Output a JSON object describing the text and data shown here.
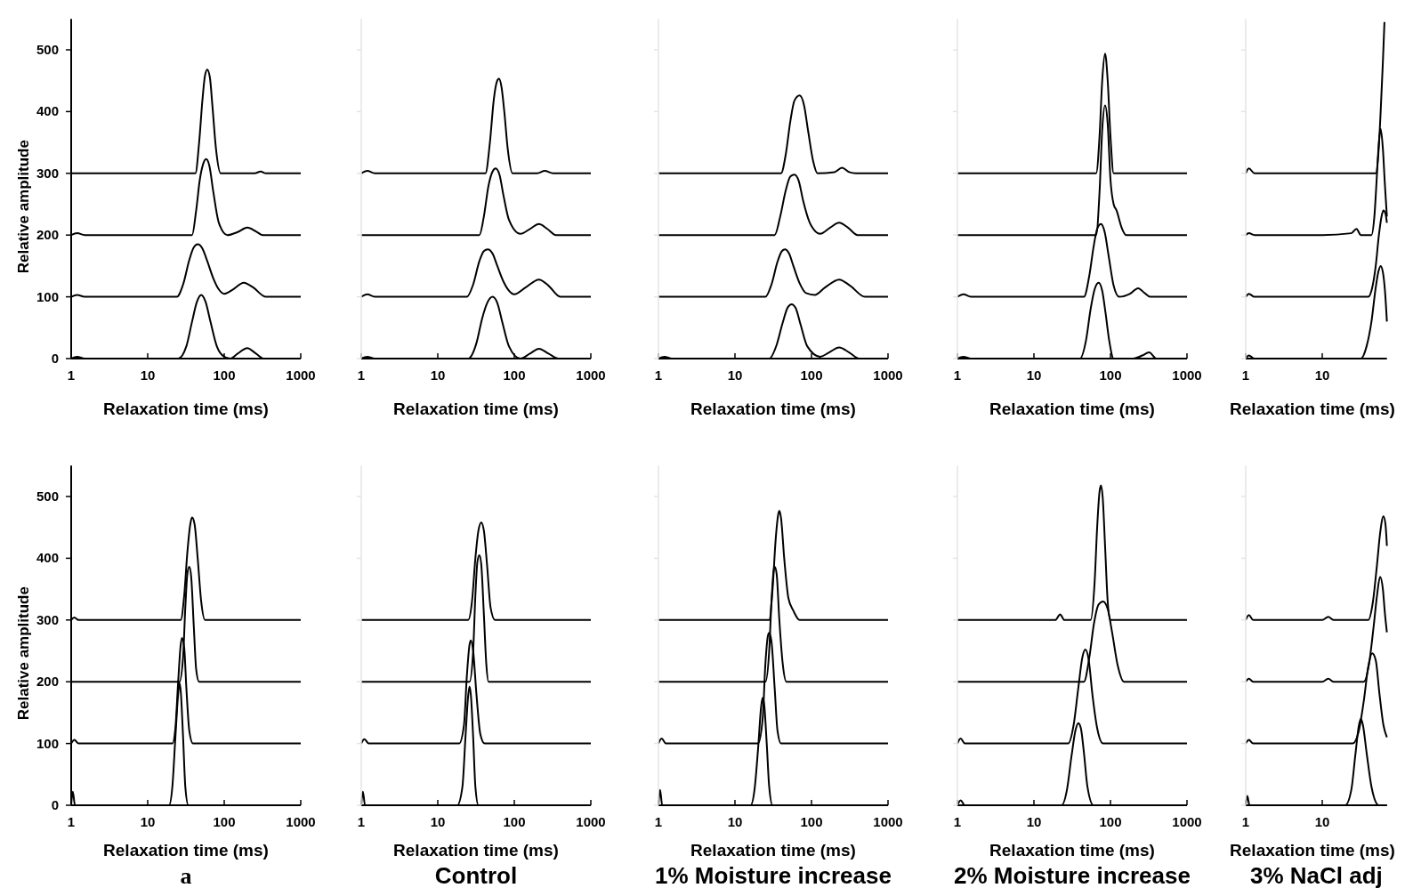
{
  "chart_data": [
    {
      "type": "line",
      "log": "x",
      "xlim": [
        1,
        1000
      ],
      "xticks": [
        1,
        10,
        100,
        1000
      ],
      "ylim": [
        0,
        550
      ],
      "yticks": [
        0,
        100,
        200,
        300,
        400,
        500
      ],
      "xlabel": "Relaxation time (ms)",
      "ylabel": "Relative amplitude",
      "series": [
        {
          "color": "#000000",
          "x": [
            1,
            1.2,
            1.5,
            10,
            25,
            32,
            38,
            44,
            50,
            57,
            66,
            80,
            100,
            120,
            150,
            200,
            260,
            330,
            1000
          ],
          "values": [
            0,
            3,
            0,
            0,
            0,
            20,
            60,
            92,
            103,
            92,
            60,
            20,
            3,
            0,
            8,
            17,
            8,
            0,
            0
          ]
        },
        {
          "color": "#000000",
          "x": [
            1,
            1.2,
            1.5,
            10,
            24,
            29,
            35,
            40,
            45,
            52,
            60,
            72,
            85,
            100,
            130,
            180,
            240,
            350,
            1000
          ],
          "values": [
            100,
            103,
            100,
            100,
            100,
            120,
            160,
            180,
            185,
            178,
            158,
            130,
            112,
            105,
            112,
            123,
            115,
            100,
            100
          ]
        },
        {
          "color": "#000000",
          "x": [
            1,
            1.2,
            1.5,
            10,
            38,
            43,
            48,
            53,
            58,
            64,
            72,
            85,
            110,
            150,
            200,
            260,
            320,
            1000
          ],
          "values": [
            200,
            203,
            200,
            200,
            200,
            240,
            290,
            315,
            323,
            312,
            270,
            220,
            200,
            205,
            212,
            206,
            200,
            200
          ]
        },
        {
          "color": "#000000",
          "x": [
            1,
            10,
            42,
            47,
            52,
            56,
            60,
            65,
            70,
            78,
            90,
            250,
            300,
            350,
            1000
          ],
          "values": [
            300,
            300,
            300,
            350,
            420,
            458,
            468,
            455,
            410,
            340,
            300,
            300,
            303,
            300,
            300
          ]
        }
      ]
    },
    {
      "type": "line",
      "log": "x",
      "xlim": [
        1,
        1000
      ],
      "xticks": [
        1,
        10,
        100,
        1000
      ],
      "ylim": [
        0,
        550
      ],
      "yticks": [
        0,
        100,
        200,
        300,
        400,
        500
      ],
      "xlabel": "Relaxation time (ms)",
      "tick_labels": "x",
      "series": [
        {
          "color": "#000000",
          "x": [
            1,
            1.2,
            1.5,
            10,
            25,
            32,
            38,
            45,
            52,
            60,
            70,
            85,
            120,
            160,
            210,
            280,
            380,
            1000
          ],
          "values": [
            0,
            3,
            0,
            0,
            0,
            25,
            65,
            92,
            100,
            90,
            58,
            20,
            0,
            8,
            16,
            8,
            0,
            0
          ]
        },
        {
          "color": "#000000",
          "x": [
            1,
            1.2,
            1.5,
            10,
            24,
            29,
            35,
            40,
            45,
            52,
            60,
            72,
            85,
            100,
            140,
            210,
            280,
            400,
            1000
          ],
          "values": [
            100,
            104,
            100,
            100,
            100,
            120,
            158,
            174,
            177,
            170,
            150,
            125,
            110,
            104,
            115,
            128,
            118,
            100,
            100
          ]
        },
        {
          "color": "#000000",
          "x": [
            1,
            10,
            35,
            40,
            46,
            52,
            57,
            64,
            72,
            85,
            120,
            160,
            210,
            270,
            350,
            1000
          ],
          "values": [
            200,
            200,
            200,
            230,
            280,
            303,
            308,
            298,
            265,
            225,
            202,
            210,
            218,
            210,
            200,
            200
          ]
        },
        {
          "color": "#000000",
          "x": [
            1,
            1.2,
            1.5,
            10,
            42,
            48,
            54,
            59,
            63,
            68,
            74,
            82,
            95,
            200,
            250,
            320,
            1000
          ],
          "values": [
            300,
            304,
            300,
            300,
            300,
            350,
            420,
            448,
            453,
            440,
            400,
            340,
            300,
            300,
            304,
            300,
            300
          ]
        }
      ]
    },
    {
      "type": "line",
      "log": "x",
      "xlim": [
        1,
        1000
      ],
      "xticks": [
        1,
        10,
        100,
        1000
      ],
      "ylim": [
        0,
        550
      ],
      "yticks": [
        0,
        100,
        200,
        300,
        400,
        500
      ],
      "xlabel": "Relaxation time (ms)",
      "tick_labels": "x",
      "series": [
        {
          "color": "#000000",
          "x": [
            1,
            1.2,
            1.5,
            10,
            28,
            35,
            42,
            49,
            55,
            62,
            72,
            88,
            130,
            170,
            230,
            310,
            420,
            1000
          ],
          "values": [
            0,
            3,
            0,
            0,
            0,
            22,
            58,
            83,
            88,
            82,
            55,
            20,
            3,
            10,
            18,
            10,
            0,
            0
          ]
        },
        {
          "color": "#000000",
          "x": [
            1,
            10,
            25,
            30,
            36,
            41,
            45,
            51,
            58,
            70,
            85,
            110,
            150,
            230,
            320,
            500,
            1000
          ],
          "values": [
            100,
            100,
            100,
            120,
            157,
            174,
            177,
            170,
            150,
            122,
            106,
            103,
            115,
            128,
            118,
            100,
            100
          ]
        },
        {
          "color": "#000000",
          "x": [
            1,
            10,
            33,
            39,
            46,
            53,
            60,
            68,
            78,
            95,
            130,
            175,
            230,
            300,
            400,
            1000
          ],
          "values": [
            200,
            200,
            200,
            230,
            272,
            295,
            298,
            288,
            255,
            220,
            202,
            212,
            220,
            212,
            200,
            200
          ]
        },
        {
          "color": "#000000",
          "x": [
            1,
            10,
            40,
            46,
            53,
            60,
            70,
            80,
            90,
            105,
            120,
            200,
            250,
            310,
            380,
            1000
          ],
          "values": [
            300,
            300,
            300,
            330,
            385,
            418,
            426,
            410,
            370,
            320,
            300,
            302,
            309,
            302,
            300,
            300
          ]
        }
      ]
    },
    {
      "type": "line",
      "log": "x",
      "xlim": [
        1,
        1000
      ],
      "xticks": [
        1,
        10,
        100,
        1000
      ],
      "ylim": [
        0,
        550
      ],
      "yticks": [
        0,
        100,
        200,
        300,
        400,
        500
      ],
      "xlabel": "Relaxation time (ms)",
      "tick_labels": "x",
      "series": [
        {
          "color": "#000000",
          "x": [
            1,
            1.2,
            1.5,
            10,
            40,
            48,
            55,
            62,
            70,
            78,
            86,
            96,
            110,
            200,
            260,
            320,
            400,
            1000
          ],
          "values": [
            0,
            3,
            0,
            0,
            0,
            30,
            80,
            112,
            123,
            110,
            75,
            30,
            0,
            0,
            5,
            10,
            0,
            0
          ]
        },
        {
          "color": "#000000",
          "x": [
            1,
            1.2,
            1.5,
            10,
            45,
            53,
            60,
            67,
            75,
            84,
            95,
            110,
            130,
            180,
            230,
            280,
            330,
            1000
          ],
          "values": [
            100,
            104,
            100,
            100,
            100,
            135,
            180,
            210,
            218,
            205,
            165,
            118,
            100,
            105,
            114,
            106,
            100,
            100
          ]
        },
        {
          "color": "#000000",
          "x": [
            1,
            10,
            65,
            72,
            78,
            85,
            92,
            100,
            110,
            120,
            140,
            160,
            1000
          ],
          "values": [
            200,
            200,
            200,
            270,
            370,
            410,
            380,
            290,
            250,
            240,
            212,
            200,
            200
          ]
        },
        {
          "color": "#000000",
          "x": [
            1,
            10,
            65,
            72,
            78,
            85,
            92,
            100,
            110,
            1000
          ],
          "values": [
            300,
            300,
            300,
            360,
            450,
            494,
            450,
            360,
            300,
            300
          ]
        }
      ]
    },
    {
      "type": "line",
      "log": "x",
      "xlim": [
        1,
        70
      ],
      "xticks": [
        1,
        10
      ],
      "ylim": [
        0,
        550
      ],
      "yticks": [
        0,
        100,
        200,
        300,
        400,
        500
      ],
      "xlabel": "Relaxation time (ms)",
      "tick_labels": "x",
      "series": [
        {
          "color": "#000000",
          "x": [
            1,
            1.1,
            1.3,
            10,
            32,
            38,
            44,
            50,
            54,
            58,
            62,
            66,
            70
          ],
          "values": [
            0,
            5,
            0,
            0,
            0,
            20,
            60,
            115,
            140,
            150,
            140,
            110,
            60
          ]
        },
        {
          "color": "#000000",
          "x": [
            1,
            1.1,
            1.3,
            10,
            40,
            45,
            50,
            55,
            60,
            63,
            67,
            70
          ],
          "values": [
            100,
            105,
            100,
            100,
            100,
            115,
            150,
            200,
            232,
            240,
            235,
            220
          ]
        },
        {
          "color": "#000000",
          "x": [
            1,
            1.1,
            1.3,
            10,
            24,
            28,
            32,
            44,
            48,
            52,
            55,
            58,
            62,
            66,
            70
          ],
          "values": [
            200,
            203,
            200,
            200,
            203,
            210,
            200,
            200,
            230,
            300,
            350,
            372,
            340,
            280,
            230
          ]
        },
        {
          "color": "#000000",
          "x": [
            1,
            1.1,
            1.3,
            10,
            50,
            54,
            58,
            62,
            65
          ],
          "values": [
            300,
            308,
            300,
            300,
            300,
            330,
            400,
            480,
            545
          ]
        }
      ]
    },
    {
      "type": "line",
      "log": "x",
      "xlim": [
        1,
        1000
      ],
      "xticks": [
        1,
        10,
        100,
        1000
      ],
      "ylim": [
        0,
        550
      ],
      "yticks": [
        0,
        100,
        200,
        300,
        400,
        500
      ],
      "xlabel": "Relaxation time (ms)",
      "ylabel": "Relative amplitude",
      "annotations": [
        "a"
      ],
      "series": [
        {
          "color": "#000000",
          "x": [
            1,
            1.05,
            1.12,
            10,
            19,
            21,
            23,
            25,
            26,
            27,
            29,
            31,
            34,
            1000
          ],
          "values": [
            0,
            22,
            0,
            0,
            0,
            30,
            110,
            180,
            198,
            185,
            110,
            30,
            0,
            0
          ]
        },
        {
          "color": "#000000",
          "x": [
            1,
            1.1,
            1.25,
            10,
            21,
            23,
            25,
            27,
            28,
            30,
            32,
            35,
            39,
            1000
          ],
          "values": [
            100,
            106,
            100,
            100,
            100,
            125,
            200,
            260,
            271,
            255,
            190,
            120,
            100,
            100
          ]
        },
        {
          "color": "#000000",
          "x": [
            1,
            10,
            26,
            29,
            31,
            33,
            35,
            37,
            40,
            43,
            47,
            1000
          ],
          "values": [
            200,
            200,
            200,
            240,
            320,
            375,
            386,
            370,
            290,
            220,
            200,
            200
          ]
        },
        {
          "color": "#000000",
          "x": [
            1,
            1.1,
            1.25,
            10,
            27,
            30,
            33,
            36,
            38,
            41,
            45,
            50,
            56,
            1000
          ],
          "values": [
            300,
            304,
            300,
            300,
            300,
            340,
            410,
            455,
            466,
            455,
            400,
            330,
            300,
            300
          ]
        }
      ]
    },
    {
      "type": "line",
      "log": "x",
      "xlim": [
        1,
        1000
      ],
      "xticks": [
        1,
        10,
        100,
        1000
      ],
      "ylim": [
        0,
        550
      ],
      "yticks": [
        0,
        100,
        200,
        300,
        400,
        500
      ],
      "xlabel": "Relaxation time (ms)",
      "tick_labels": "x",
      "annotations": [
        "Control"
      ],
      "series": [
        {
          "color": "#000000",
          "x": [
            1,
            1.05,
            1.12,
            10,
            18,
            21,
            23,
            25,
            26,
            27,
            29,
            31,
            34,
            1000
          ],
          "values": [
            0,
            22,
            0,
            0,
            0,
            30,
            110,
            178,
            192,
            180,
            110,
            30,
            0,
            0
          ]
        },
        {
          "color": "#000000",
          "x": [
            1,
            1.1,
            1.25,
            10,
            19,
            22,
            24,
            26,
            27,
            29,
            32,
            36,
            41,
            1000
          ],
          "values": [
            100,
            107,
            100,
            100,
            100,
            130,
            210,
            260,
            267,
            250,
            180,
            115,
            100,
            100
          ]
        },
        {
          "color": "#000000",
          "x": [
            1,
            10,
            26,
            29,
            31,
            33,
            35,
            37,
            40,
            43,
            46,
            1000
          ],
          "values": [
            200,
            200,
            200,
            250,
            340,
            395,
            405,
            390,
            310,
            230,
            200,
            200
          ]
        },
        {
          "color": "#000000",
          "x": [
            1,
            10,
            25,
            28,
            31,
            34,
            37,
            40,
            44,
            49,
            56,
            1000
          ],
          "values": [
            300,
            300,
            300,
            330,
            400,
            445,
            458,
            445,
            390,
            320,
            300,
            300
          ]
        }
      ]
    },
    {
      "type": "line",
      "log": "x",
      "xlim": [
        1,
        1000
      ],
      "xticks": [
        1,
        10,
        100,
        1000
      ],
      "ylim": [
        0,
        550
      ],
      "yticks": [
        0,
        100,
        200,
        300,
        400,
        500
      ],
      "xlabel": "Relaxation time (ms)",
      "tick_labels": "x",
      "annotations": [
        "1% Moisture increase"
      ],
      "series": [
        {
          "color": "#000000",
          "x": [
            1,
            1.05,
            1.12,
            10,
            16,
            18,
            20,
            22,
            23,
            24,
            26,
            28,
            31,
            1000
          ],
          "values": [
            0,
            25,
            0,
            0,
            0,
            25,
            90,
            160,
            174,
            165,
            100,
            30,
            0,
            0
          ]
        },
        {
          "color": "#000000",
          "x": [
            1,
            1.1,
            1.25,
            10,
            20,
            23,
            25,
            27,
            28,
            30,
            33,
            36,
            40,
            1000
          ],
          "values": [
            100,
            108,
            100,
            100,
            100,
            140,
            230,
            275,
            279,
            265,
            190,
            120,
            100,
            100
          ]
        },
        {
          "color": "#000000",
          "x": [
            1,
            10,
            25,
            28,
            30,
            32,
            33,
            35,
            38,
            42,
            47,
            1000
          ],
          "values": [
            200,
            200,
            200,
            250,
            330,
            380,
            386,
            375,
            300,
            230,
            200,
            200
          ]
        },
        {
          "color": "#000000",
          "x": [
            1,
            10,
            28,
            31,
            34,
            37,
            38,
            40,
            44,
            50,
            58,
            70,
            1000
          ],
          "values": [
            300,
            300,
            300,
            350,
            430,
            473,
            477,
            465,
            400,
            335,
            315,
            300,
            300
          ]
        }
      ]
    },
    {
      "type": "line",
      "log": "x",
      "xlim": [
        1,
        1000
      ],
      "xticks": [
        1,
        10,
        100,
        1000
      ],
      "ylim": [
        0,
        550
      ],
      "yticks": [
        0,
        100,
        200,
        300,
        400,
        500
      ],
      "xlabel": "Relaxation time (ms)",
      "tick_labels": "x",
      "annotations": [
        "2% Moisture increase"
      ],
      "series": [
        {
          "color": "#000000",
          "x": [
            1,
            1.1,
            1.25,
            10,
            23,
            27,
            31,
            35,
            38,
            41,
            45,
            50,
            60,
            1000
          ],
          "values": [
            0,
            8,
            0,
            0,
            0,
            25,
            80,
            122,
            133,
            125,
            85,
            30,
            0,
            0
          ]
        },
        {
          "color": "#000000",
          "x": [
            1,
            1.1,
            1.25,
            10,
            28,
            33,
            38,
            43,
            47,
            52,
            58,
            67,
            80,
            1000
          ],
          "values": [
            100,
            108,
            100,
            100,
            100,
            130,
            190,
            240,
            252,
            235,
            180,
            125,
            100,
            100
          ]
        },
        {
          "color": "#000000",
          "x": [
            1,
            10,
            45,
            53,
            61,
            70,
            80,
            92,
            105,
            125,
            150,
            1000
          ],
          "values": [
            200,
            200,
            200,
            240,
            295,
            325,
            330,
            318,
            280,
            225,
            200,
            200
          ]
        },
        {
          "color": "#000000",
          "x": [
            1,
            10,
            19,
            22,
            25,
            55,
            62,
            67,
            72,
            75,
            79,
            85,
            92,
            100,
            1000
          ],
          "values": [
            300,
            300,
            300,
            309,
            300,
            300,
            360,
            450,
            508,
            518,
            500,
            420,
            330,
            300,
            300
          ]
        }
      ]
    },
    {
      "type": "line",
      "log": "x",
      "xlim": [
        1,
        70
      ],
      "xticks": [
        1,
        10
      ],
      "ylim": [
        0,
        550
      ],
      "yticks": [
        0,
        100,
        200,
        300,
        400,
        500
      ],
      "xlabel": "Relaxation time (ms)",
      "tick_labels": "x",
      "annotations": [
        "3% NaCl adj"
      ],
      "series": [
        {
          "color": "#000000",
          "x": [
            1,
            1.05,
            1.12,
            10,
            20,
            24,
            27,
            30,
            32,
            34,
            38,
            44,
            55,
            70
          ],
          "values": [
            0,
            15,
            0,
            0,
            0,
            25,
            80,
            128,
            140,
            130,
            85,
            30,
            0,
            0
          ]
        },
        {
          "color": "#000000",
          "x": [
            1,
            1.1,
            1.25,
            10,
            25,
            30,
            35,
            40,
            45,
            50,
            56,
            63,
            70
          ],
          "values": [
            100,
            106,
            100,
            100,
            100,
            120,
            170,
            225,
            246,
            235,
            180,
            130,
            110
          ]
        },
        {
          "color": "#000000",
          "x": [
            1,
            1.1,
            1.25,
            10,
            12,
            14,
            35,
            41,
            47,
            52,
            57,
            62,
            66,
            70
          ],
          "values": [
            200,
            205,
            200,
            200,
            205,
            200,
            200,
            230,
            290,
            340,
            370,
            350,
            310,
            280
          ]
        },
        {
          "color": "#000000",
          "x": [
            1,
            1.1,
            1.25,
            10,
            12,
            14,
            40,
            46,
            52,
            57,
            63,
            67,
            70
          ],
          "values": [
            300,
            308,
            300,
            300,
            305,
            300,
            300,
            330,
            390,
            440,
            468,
            455,
            420
          ]
        }
      ]
    }
  ]
}
